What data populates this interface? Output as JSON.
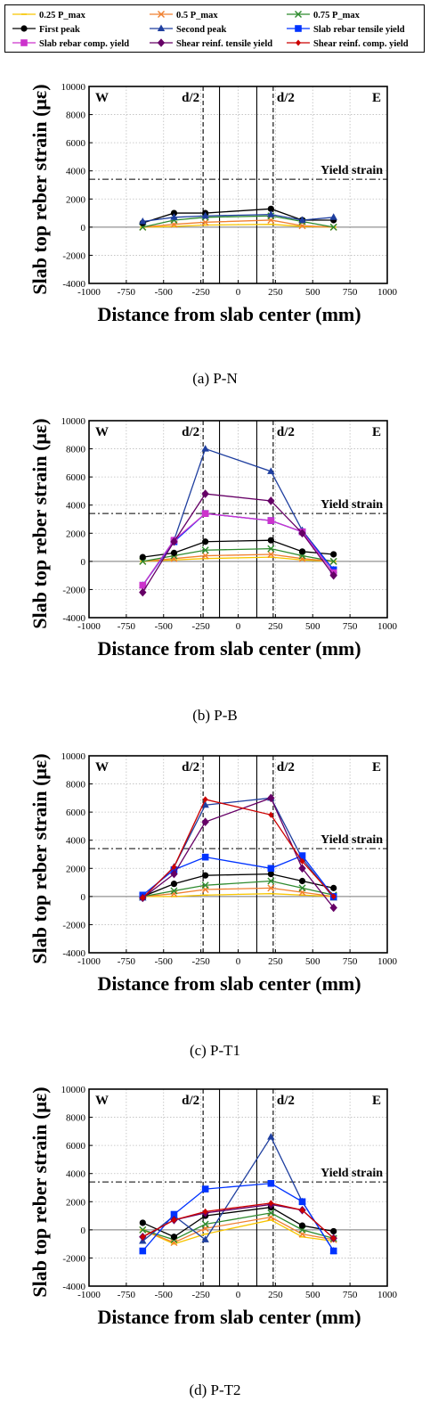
{
  "legend": [
    {
      "label": "0.25 P_max",
      "color": "#f7c500",
      "marker": "line"
    },
    {
      "label": "0.5 P_max",
      "color": "#f08030",
      "marker": "x"
    },
    {
      "label": "0.75 P_max",
      "color": "#2e8b2e",
      "marker": "x"
    },
    {
      "label": "First peak",
      "color": "#000000",
      "marker": "circle"
    },
    {
      "label": "Second peak",
      "color": "#1f3f9f",
      "marker": "triangle"
    },
    {
      "label": "Slab rebar tensile yield",
      "color": "#0033ff",
      "marker": "square"
    },
    {
      "label": "Slab rebar comp. yield",
      "color": "#cc33cc",
      "marker": "square"
    },
    {
      "label": "Shear reinf. tensile yield",
      "color": "#660066",
      "marker": "diamond"
    },
    {
      "label": "Shear reinf. comp. yield",
      "color": "#cc0000",
      "marker": "diamond-small"
    }
  ],
  "chart_data": [
    {
      "type": "line",
      "caption": "(a) P-N",
      "xlabel": "Distance from slab center (mm)",
      "ylabel": "Slab top reber strain (με)",
      "xlim": [
        -1000,
        1000
      ],
      "ylim": [
        -4000,
        10000
      ],
      "xticks": [
        -1000,
        -750,
        -500,
        -250,
        0,
        250,
        500,
        750,
        1000
      ],
      "yticks": [
        -4000,
        -2000,
        0,
        2000,
        4000,
        6000,
        8000,
        10000
      ],
      "corner_left": "W",
      "corner_right": "E",
      "d2_label": "d/2",
      "yield_strain": 3400,
      "yield_label": "Yield strain",
      "grid": true,
      "x": [
        -640,
        -430,
        -220,
        220,
        430,
        640
      ],
      "series": [
        {
          "name": "0.25 P_max",
          "values": [
            0,
            50,
            150,
            200,
            50,
            0
          ]
        },
        {
          "name": "0.5 P_max",
          "values": [
            0,
            200,
            350,
            500,
            100,
            0
          ]
        },
        {
          "name": "0.75 P_max",
          "values": [
            0,
            500,
            700,
            800,
            400,
            0
          ]
        },
        {
          "name": "First peak",
          "values": [
            300,
            1000,
            1000,
            1300,
            500,
            500
          ]
        },
        {
          "name": "Second peak",
          "values": [
            400,
            700,
            800,
            900,
            500,
            700
          ]
        }
      ]
    },
    {
      "type": "line",
      "caption": "(b) P-B",
      "xlabel": "Distance from slab center (mm)",
      "ylabel": "Slab top reber strain (με)",
      "xlim": [
        -1000,
        1000
      ],
      "ylim": [
        -4000,
        10000
      ],
      "xticks": [
        -1000,
        -750,
        -500,
        -250,
        0,
        250,
        500,
        750,
        1000
      ],
      "yticks": [
        -4000,
        -2000,
        0,
        2000,
        4000,
        6000,
        8000,
        10000
      ],
      "corner_left": "W",
      "corner_right": "E",
      "d2_label": "d/2",
      "yield_strain": 3400,
      "yield_label": "Yield strain",
      "grid": true,
      "x": [
        -640,
        -430,
        -220,
        220,
        430,
        640
      ],
      "series": [
        {
          "name": "0.25 P_max",
          "values": [
            0,
            100,
            200,
            300,
            100,
            0
          ]
        },
        {
          "name": "0.5 P_max",
          "values": [
            0,
            200,
            400,
            500,
            200,
            0
          ]
        },
        {
          "name": "0.75 P_max",
          "values": [
            0,
            400,
            800,
            900,
            400,
            0
          ]
        },
        {
          "name": "First peak",
          "values": [
            300,
            600,
            1400,
            1500,
            700,
            500
          ]
        },
        {
          "name": "Second peak",
          "values": [
            -1700,
            1500,
            8000,
            6400,
            2200,
            -600
          ]
        },
        {
          "name": "Slab rebar tensile yield",
          "values": [
            -1700,
            1400,
            3400,
            2900,
            2100,
            -600
          ]
        },
        {
          "name": "Slab rebar comp. yield",
          "values": [
            -1700,
            1500,
            3400,
            2900,
            2100,
            -800
          ]
        },
        {
          "name": "Shear reinf. tensile yield",
          "values": [
            -2200,
            1400,
            4800,
            4300,
            2000,
            -1000
          ]
        }
      ]
    },
    {
      "type": "line",
      "caption": "(c) P-T1",
      "xlabel": "Distance from slab center (mm)",
      "ylabel": "Slab top reber strain (με)",
      "xlim": [
        -1000,
        1000
      ],
      "ylim": [
        -4000,
        10000
      ],
      "xticks": [
        -1000,
        -750,
        -500,
        -250,
        0,
        250,
        500,
        750,
        1000
      ],
      "yticks": [
        -4000,
        -2000,
        0,
        2000,
        4000,
        6000,
        8000,
        10000
      ],
      "corner_left": "W",
      "corner_right": "E",
      "d2_label": "d/2",
      "yield_strain": 3400,
      "yield_label": "Yield strain",
      "grid": true,
      "x": [
        -640,
        -430,
        -220,
        220,
        430,
        640
      ],
      "series": [
        {
          "name": "0.25 P_max",
          "values": [
            0,
            0,
            100,
            200,
            100,
            0
          ]
        },
        {
          "name": "0.5 P_max",
          "values": [
            0,
            200,
            500,
            600,
            300,
            0
          ]
        },
        {
          "name": "0.75 P_max",
          "values": [
            0,
            400,
            800,
            1100,
            600,
            100
          ]
        },
        {
          "name": "First peak",
          "values": [
            0,
            900,
            1500,
            1600,
            1100,
            600
          ]
        },
        {
          "name": "Second peak",
          "values": [
            -100,
            2100,
            6500,
            7000,
            2700,
            -100
          ]
        },
        {
          "name": "Slab rebar tensile yield",
          "values": [
            100,
            1900,
            2800,
            2000,
            2900,
            0
          ]
        },
        {
          "name": "Shear reinf. tensile yield",
          "values": [
            -100,
            1600,
            5300,
            7000,
            2000,
            -800
          ]
        },
        {
          "name": "Shear reinf. comp. yield",
          "values": [
            -100,
            2100,
            6900,
            5800,
            2500,
            0
          ]
        }
      ]
    },
    {
      "type": "line",
      "caption": "(d) P-T2",
      "xlabel": "Distance from slab center (mm)",
      "ylabel": "Slab top reber strain (με)",
      "xlim": [
        -1000,
        1000
      ],
      "ylim": [
        -4000,
        10000
      ],
      "xticks": [
        -1000,
        -750,
        -500,
        -250,
        0,
        250,
        500,
        750,
        1000
      ],
      "yticks": [
        -4000,
        -2000,
        0,
        2000,
        4000,
        6000,
        8000,
        10000
      ],
      "corner_left": "W",
      "corner_right": "E",
      "d2_label": "d/2",
      "yield_strain": 3400,
      "yield_label": "Yield strain",
      "grid": true,
      "x": [
        -640,
        -430,
        -220,
        220,
        430,
        640
      ],
      "series": [
        {
          "name": "0.25 P_max",
          "values": [
            0,
            -1000,
            -300,
            700,
            -500,
            -800
          ]
        },
        {
          "name": "0.5 P_max",
          "values": [
            0,
            -900,
            100,
            900,
            -300,
            -700
          ]
        },
        {
          "name": "0.75 P_max",
          "values": [
            0,
            -700,
            400,
            1200,
            0,
            -600
          ]
        },
        {
          "name": "First peak",
          "values": [
            500,
            -500,
            1000,
            1600,
            300,
            -100
          ]
        },
        {
          "name": "Second peak",
          "values": [
            -800,
            1000,
            -700,
            6600,
            2000,
            -1500
          ]
        },
        {
          "name": "Slab rebar tensile yield",
          "values": [
            -1500,
            1100,
            2900,
            3300,
            2000,
            -1500
          ]
        },
        {
          "name": "Shear reinf. tensile yield",
          "values": [
            -500,
            700,
            1200,
            1800,
            1400,
            -600
          ]
        },
        {
          "name": "Shear reinf. comp. yield",
          "values": [
            -500,
            700,
            1300,
            1900,
            1400,
            -600
          ]
        }
      ]
    }
  ]
}
